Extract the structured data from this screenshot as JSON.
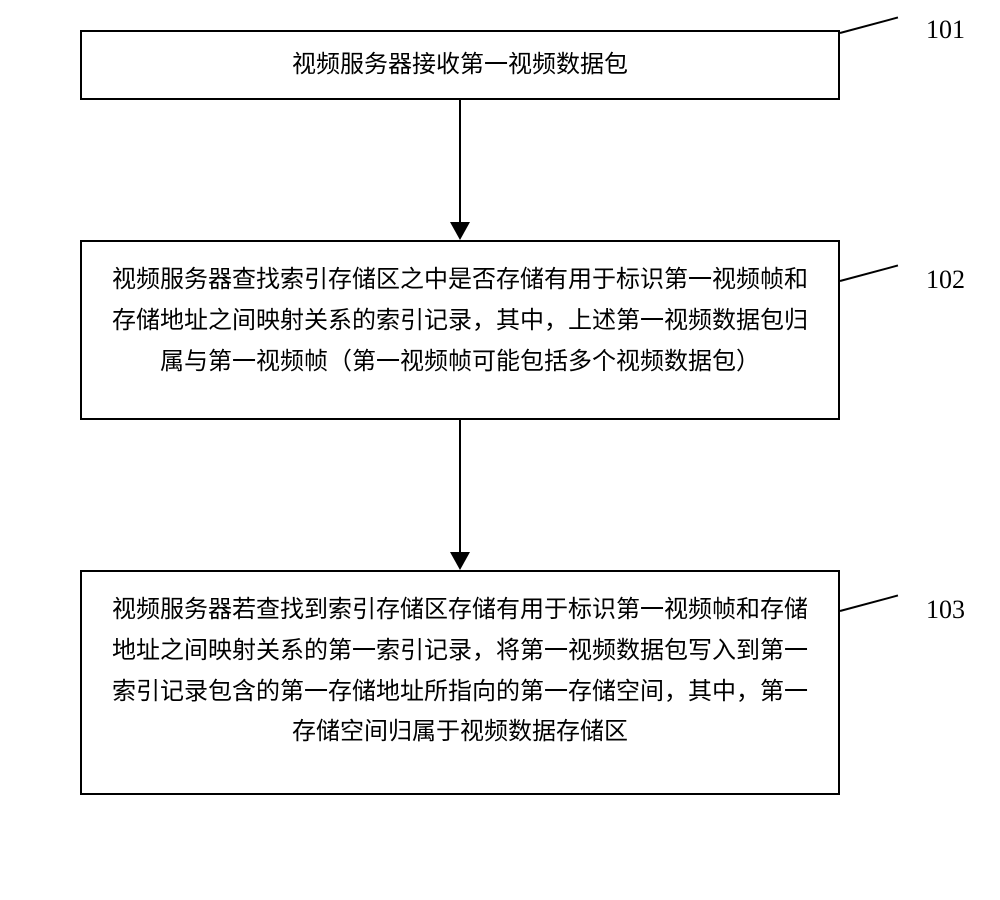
{
  "flowchart": {
    "type": "flowchart",
    "boxes": [
      {
        "id": "101",
        "text": "视频服务器接收第一视频数据包"
      },
      {
        "id": "102",
        "text": "视频服务器查找索引存储区之中是否存储有用于标识第一视频帧和存储地址之间映射关系的索引记录，其中，上述第一视频数据包归属与第一视频帧（第一视频帧可能包括多个视频数据包）"
      },
      {
        "id": "103",
        "text": "视频服务器若查找到索引存储区存储有用于标识第一视频帧和存储地址之间映射关系的第一索引记录，将第一视频数据包写入到第一索引记录包含的第一存储地址所指向的第一存储空间，其中，第一存储空间归属于视频数据存储区"
      }
    ],
    "labels": {
      "label_101": "101",
      "label_102": "102",
      "label_103": "103"
    },
    "style": {
      "border_color": "#000000",
      "border_width": 2,
      "background_color": "#ffffff",
      "font_size": 24,
      "label_font_size": 26,
      "arrow_color": "#000000",
      "font_family": "SimSun"
    }
  }
}
